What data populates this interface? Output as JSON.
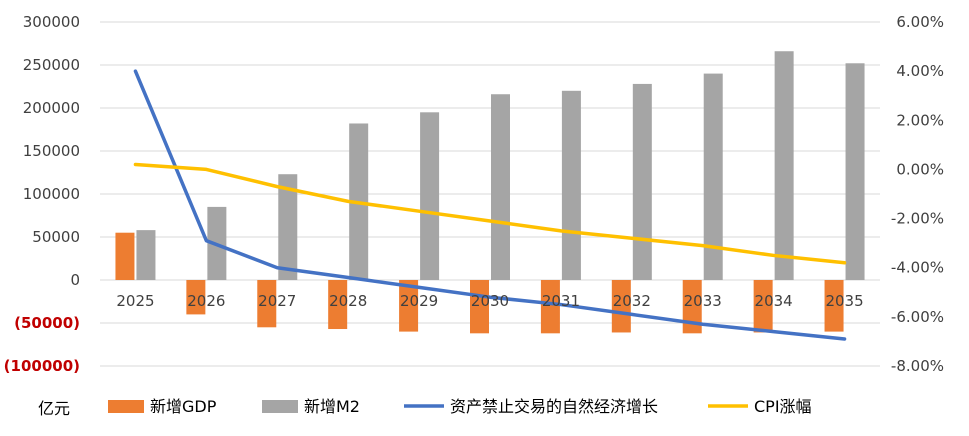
{
  "chart_data": {
    "type": "bar+line",
    "categories": [
      "2025",
      "2026",
      "2027",
      "2028",
      "2029",
      "2030",
      "2031",
      "2032",
      "2033",
      "2034",
      "2035"
    ],
    "unit_label": "亿元",
    "left_axis": {
      "ylim": [
        -100000,
        300000
      ],
      "ticks": [
        300000,
        250000,
        200000,
        150000,
        100000,
        50000,
        0,
        -50000,
        -100000
      ],
      "tick_labels": [
        "300000",
        "250000",
        "200000",
        "150000",
        "100000",
        "50000",
        "0",
        "(50000)",
        "(100000)"
      ]
    },
    "right_axis": {
      "ylim": [
        -8,
        6
      ],
      "ticks": [
        6,
        4,
        2,
        0,
        -2,
        -4,
        -6,
        -8
      ],
      "tick_labels": [
        "6.00%",
        "4.00%",
        "2.00%",
        "0.00%",
        "-2.00%",
        "-4.00%",
        "-6.00%",
        "-8.00%"
      ]
    },
    "bar_series": [
      {
        "name": "新增GDP",
        "color": "#ed7d31",
        "axis": "left",
        "values": [
          55000,
          -40000,
          -55000,
          -57000,
          -60000,
          -62000,
          -62000,
          -61000,
          -62000,
          -61000,
          -60000
        ]
      },
      {
        "name": "新增M2",
        "color": "#a5a5a5",
        "axis": "left",
        "values": [
          58000,
          85000,
          123000,
          182000,
          195000,
          216000,
          220000,
          228000,
          240000,
          266000,
          252000
        ]
      }
    ],
    "line_series": [
      {
        "name": "资产禁止交易的自然经济增长",
        "color": "#4472c4",
        "axis": "right",
        "values": [
          4.0,
          -2.9,
          -4.0,
          -4.4,
          -4.8,
          -5.2,
          -5.5,
          -5.9,
          -6.3,
          -6.6,
          -6.9
        ]
      },
      {
        "name": "CPI涨幅",
        "color": "#ffc000",
        "axis": "right",
        "values": [
          0.2,
          0.0,
          -0.7,
          -1.3,
          -1.7,
          -2.1,
          -2.5,
          -2.8,
          -3.1,
          -3.5,
          -3.8
        ]
      }
    ],
    "legend_position": "bottom",
    "grid": true
  }
}
